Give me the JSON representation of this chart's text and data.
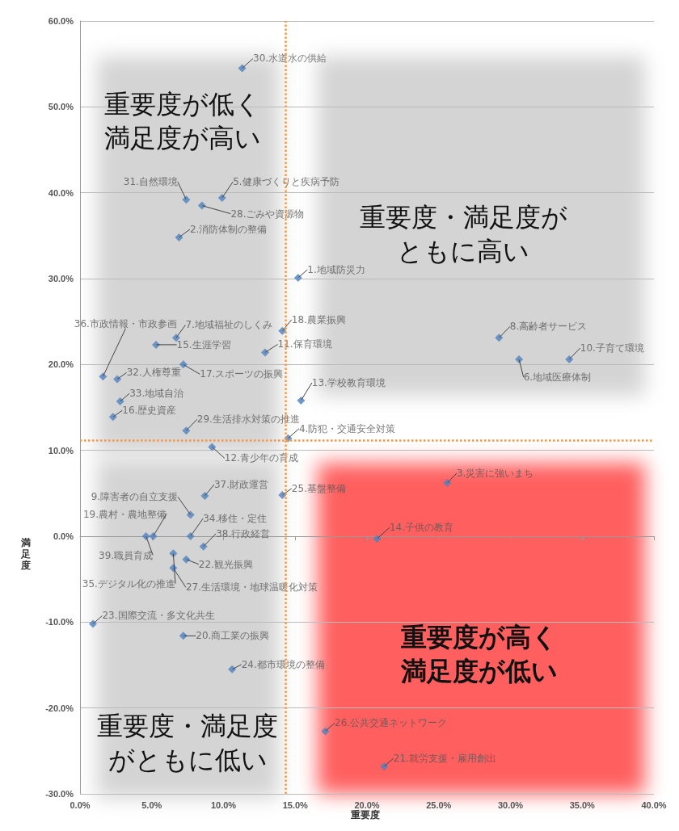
{
  "chart_data": {
    "type": "scatter",
    "xlabel": "重要度",
    "ylabel": "満足度",
    "xlim": [
      0,
      40
    ],
    "ylim": [
      -30,
      60
    ],
    "xticks": [
      {
        "value": 0,
        "label": "0.0%"
      },
      {
        "value": 5,
        "label": "5.0%"
      },
      {
        "value": 10,
        "label": "10.0%"
      },
      {
        "value": 15,
        "label": "15.0%"
      },
      {
        "value": 20,
        "label": "20.0%"
      },
      {
        "value": 25,
        "label": "25.0%"
      },
      {
        "value": 30,
        "label": "30.0%"
      },
      {
        "value": 35,
        "label": "35.0%"
      },
      {
        "value": 40,
        "label": "40.0%"
      }
    ],
    "yticks": [
      {
        "value": -30,
        "label": "-30.0%"
      },
      {
        "value": -20,
        "label": "-20.0%"
      },
      {
        "value": -10,
        "label": "-10.0%"
      },
      {
        "value": 0,
        "label": "0.0%"
      },
      {
        "value": 10,
        "label": "10.0%"
      },
      {
        "value": 20,
        "label": "20.0%"
      },
      {
        "value": 30,
        "label": "30.0%"
      },
      {
        "value": 40,
        "label": "40.0%"
      },
      {
        "value": 50,
        "label": "50.0%"
      },
      {
        "value": 60,
        "label": "60.0%"
      }
    ],
    "grid": "y",
    "marker": "diamond",
    "series": [
      {
        "color": "#4f81bd",
        "x": [
          11.3,
          7.4,
          9.9,
          8.5,
          6.9,
          15.2,
          14.1,
          12.9,
          6.7,
          5.3,
          1.6,
          2.6,
          7.2,
          2.8,
          2.3,
          7.4,
          14.5,
          9.2,
          15.4,
          29.2,
          30.6,
          34.1,
          25.6,
          20.7,
          14.1,
          8.7,
          7.7,
          7.7,
          5.1,
          4.6,
          8.6,
          6.5,
          7.4,
          6.5,
          0.9,
          7.2,
          10.6,
          17.1,
          21.2
        ],
        "values": [
          54.5,
          39.2,
          39.4,
          38.5,
          34.8,
          30.1,
          23.9,
          21.4,
          23.1,
          22.3,
          18.6,
          18.3,
          20.0,
          15.7,
          13.9,
          12.3,
          11.4,
          10.4,
          15.8,
          23.1,
          20.6,
          20.6,
          6.2,
          -0.3,
          4.8,
          4.7,
          2.5,
          0.0,
          0.0,
          0.0,
          -1.2,
          -2.0,
          -2.7,
          -3.7,
          -10.2,
          -11.6,
          -15.5,
          -22.7,
          -26.8
        ]
      }
    ],
    "ref_lines": [
      {
        "axis": "x",
        "value": 14.3,
        "color": "#f79646",
        "line_style": "dotted"
      },
      {
        "axis": "y",
        "value": 11.2,
        "color": "#f79646",
        "line_style": "dotted"
      }
    ],
    "annotations": [
      "重要度が低く満足度が高い",
      "重要度・満足度がともに高い",
      "重要度・満足度がともに低い",
      "重要度が高く満足度が低い",
      {
        "text": "30.水道水の供給",
        "x": 11.3,
        "y": 54.5
      },
      {
        "text": "31.自然環境",
        "x": 7.4,
        "y": 39.2
      },
      {
        "text": "5.健康づくりと疾病予防",
        "x": 9.9,
        "y": 39.4
      },
      {
        "text": "28.ごみや資源物",
        "x": 8.5,
        "y": 38.5
      },
      {
        "text": "2.消防体制の整備",
        "x": 6.9,
        "y": 34.8
      },
      {
        "text": "1.地域防災力",
        "x": 15.2,
        "y": 30.1
      },
      {
        "text": "18.農業振興",
        "x": 14.1,
        "y": 23.9
      },
      {
        "text": "11.保育環境",
        "x": 12.9,
        "y": 21.4
      },
      {
        "text": "7.地域福祉のしくみ",
        "x": 6.7,
        "y": 23.1
      },
      {
        "text": "15.生涯学習",
        "x": 5.3,
        "y": 22.3
      },
      {
        "text": "36.市政情報・市政参画",
        "x": 1.6,
        "y": 18.6
      },
      {
        "text": "32.人権尊重",
        "x": 2.6,
        "y": 18.3
      },
      {
        "text": "17.スポーツの振興",
        "x": 7.2,
        "y": 20.0
      },
      {
        "text": "33.地域自治",
        "x": 2.8,
        "y": 15.7
      },
      {
        "text": "16.歴史資産",
        "x": 2.3,
        "y": 13.9
      },
      {
        "text": "29.生活排水対策の推進",
        "x": 7.4,
        "y": 12.3
      },
      {
        "text": "4.防犯・交通安全対策",
        "x": 14.5,
        "y": 11.4
      },
      {
        "text": "12.青少年の育成",
        "x": 9.2,
        "y": 10.4
      },
      {
        "text": "13.学校教育環境",
        "x": 15.4,
        "y": 15.8
      },
      {
        "text": "8.高齢者サービス",
        "x": 29.2,
        "y": 23.1
      },
      {
        "text": "6.地域医療体制",
        "x": 30.6,
        "y": 20.6
      },
      {
        "text": "10.子育て環境",
        "x": 34.1,
        "y": 20.6
      },
      {
        "text": "3.災害に強いまち",
        "x": 25.6,
        "y": 6.2
      },
      {
        "text": "14.子供の教育",
        "x": 20.7,
        "y": -0.3
      },
      {
        "text": "25.基盤整備",
        "x": 14.1,
        "y": 4.8
      },
      {
        "text": "37.財政運営",
        "x": 8.7,
        "y": 4.7
      },
      {
        "text": "9.障害者の自立支援",
        "x": 7.7,
        "y": 2.5
      },
      {
        "text": "34.移住・定住",
        "x": 7.7,
        "y": 0.0
      },
      {
        "text": "19.農村・農地整備",
        "x": 5.1,
        "y": 0.0
      },
      {
        "text": "39.職員育成",
        "x": 4.6,
        "y": 0.0
      },
      {
        "text": "38.行政経営",
        "x": 8.6,
        "y": -1.2
      },
      {
        "text": "35.デジタル化の推進",
        "x": 6.5,
        "y": -2.0
      },
      {
        "text": "22.観光振興",
        "x": 7.4,
        "y": -2.7
      },
      {
        "text": "27.生活環境・地球温暖化対策",
        "x": 6.5,
        "y": -3.7
      },
      {
        "text": "23.国際交流・多文化共生",
        "x": 0.9,
        "y": -10.2
      },
      {
        "text": "20.商工業の振興",
        "x": 7.2,
        "y": -11.6
      },
      {
        "text": "24.都市環境の整備",
        "x": 10.6,
        "y": -15.5
      },
      {
        "text": "26.公共交通ネットワーク",
        "x": 17.1,
        "y": -22.7
      },
      {
        "text": "21.就労支援・雇用創出",
        "x": 21.2,
        "y": -26.8
      }
    ]
  }
}
